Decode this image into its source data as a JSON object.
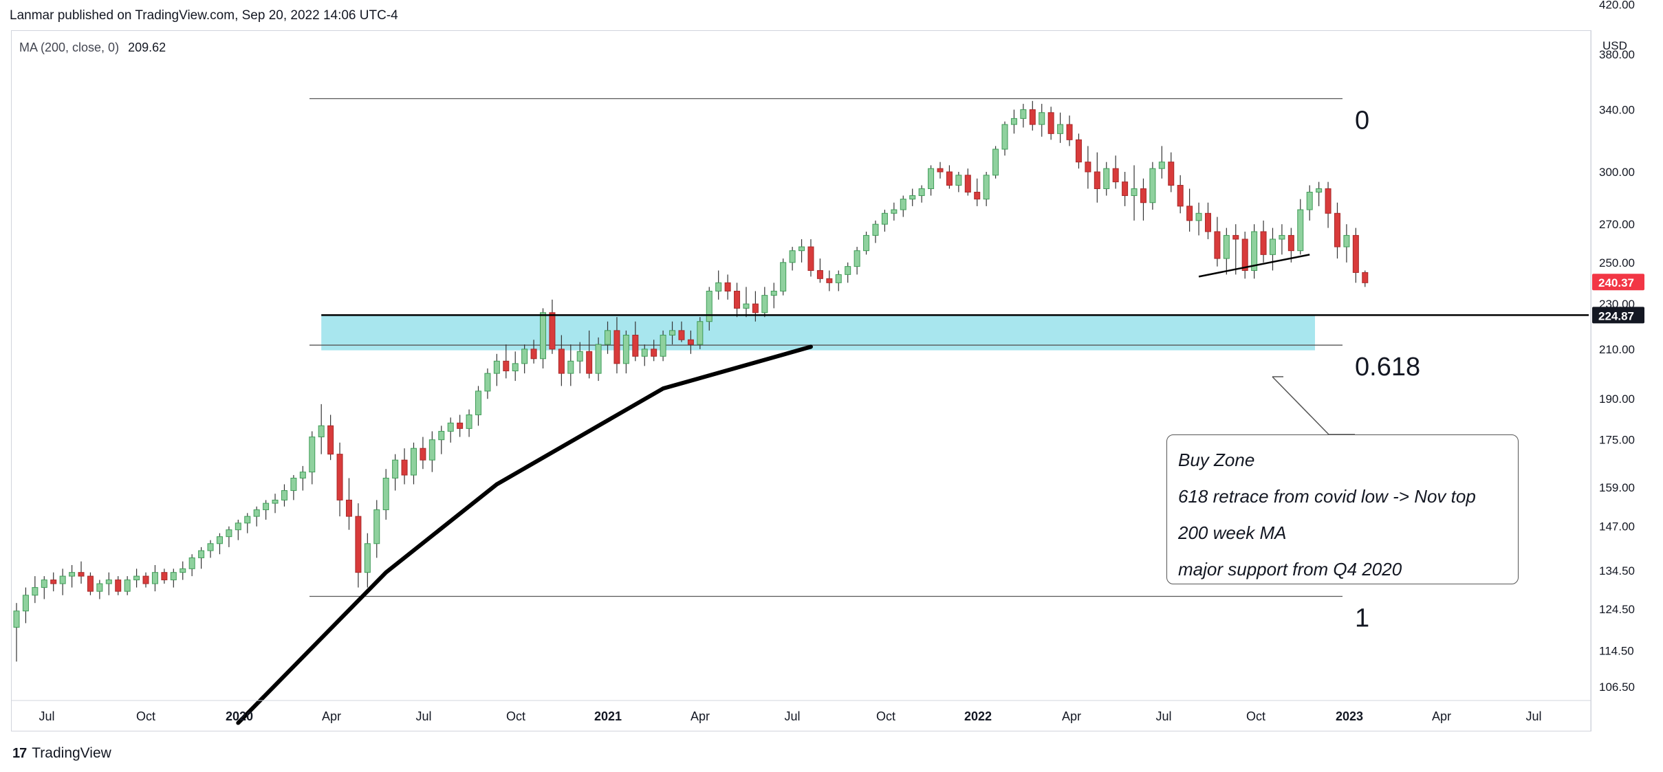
{
  "header": {
    "published": "Lanmar published on TradingView.com, Sep 20, 2022 14:06 UTC-4"
  },
  "legend": {
    "label": "MA (200, close, 0)",
    "value": "209.62"
  },
  "footer": {
    "brand": "TradingView",
    "logo_glyph": "17"
  },
  "price_axis": {
    "currency": "USD",
    "ticks": [
      "420.00",
      "380.00",
      "340.00",
      "300.00",
      "270.00",
      "250.00",
      "230.00",
      "210.00",
      "190.00",
      "175.00",
      "159.00",
      "147.00",
      "134.50",
      "124.50",
      "114.50",
      "106.50"
    ],
    "last_price": "240.37",
    "last_price_color": "#f23645",
    "line_price": "224.87",
    "line_price_color": "#131722"
  },
  "time_axis": {
    "labels": [
      "Jul",
      "Oct",
      "2020",
      "Apr",
      "Jul",
      "Oct",
      "2021",
      "Apr",
      "Jul",
      "Oct",
      "2022",
      "Apr",
      "Jul",
      "Oct",
      "2023",
      "Apr",
      "Jul"
    ],
    "bold": [
      false,
      false,
      true,
      false,
      false,
      false,
      true,
      false,
      false,
      false,
      true,
      false,
      false,
      false,
      true,
      false,
      false
    ]
  },
  "fib": {
    "level_0": "0",
    "level_618": "0.618",
    "level_1": "1"
  },
  "callout": {
    "lines": [
      "Buy Zone",
      "618 retrace from covid low -> Nov top",
      "200 week MA",
      "major support from Q4 2020"
    ]
  },
  "colors": {
    "up": "#3f9c57",
    "up_fill": "#8fd19e",
    "down": "#d83b3b",
    "zone": "#a8e6ee",
    "ma": "#000000"
  },
  "chart_data": {
    "type": "candlestick",
    "scale": "log",
    "ylim": [
      106.5,
      420
    ],
    "candles": [
      [
        120,
        126,
        112,
        124
      ],
      [
        124,
        130,
        121,
        128
      ],
      [
        128,
        133,
        126,
        130
      ],
      [
        130,
        133,
        127,
        132
      ],
      [
        132,
        134,
        129,
        131
      ],
      [
        131,
        135,
        128,
        133
      ],
      [
        133,
        136,
        130,
        134
      ],
      [
        134,
        137,
        131,
        133
      ],
      [
        133,
        134,
        128,
        129
      ],
      [
        129,
        132,
        127,
        131
      ],
      [
        131,
        134,
        128,
        132
      ],
      [
        132,
        133,
        128,
        129
      ],
      [
        129,
        133,
        128,
        132
      ],
      [
        132,
        135,
        130,
        133
      ],
      [
        133,
        134,
        130,
        131
      ],
      [
        131,
        136,
        129,
        134
      ],
      [
        134,
        135,
        131,
        132
      ],
      [
        132,
        135,
        130,
        134
      ],
      [
        134,
        137,
        132,
        135
      ],
      [
        135,
        139,
        133,
        138
      ],
      [
        138,
        141,
        135,
        140
      ],
      [
        140,
        143,
        138,
        142
      ],
      [
        142,
        145,
        139,
        144
      ],
      [
        144,
        147,
        141,
        146
      ],
      [
        146,
        149,
        143,
        148
      ],
      [
        148,
        151,
        145,
        150
      ],
      [
        150,
        153,
        147,
        152
      ],
      [
        152,
        155,
        149,
        154
      ],
      [
        154,
        157,
        151,
        155
      ],
      [
        155,
        160,
        153,
        158
      ],
      [
        158,
        163,
        155,
        162
      ],
      [
        162,
        166,
        158,
        164
      ],
      [
        164,
        178,
        160,
        176
      ],
      [
        176,
        188,
        170,
        180
      ],
      [
        180,
        184,
        168,
        170
      ],
      [
        170,
        174,
        150,
        155
      ],
      [
        155,
        162,
        146,
        150
      ],
      [
        150,
        154,
        130,
        134
      ],
      [
        134,
        145,
        130,
        142
      ],
      [
        142,
        155,
        138,
        152
      ],
      [
        152,
        165,
        149,
        162
      ],
      [
        162,
        170,
        158,
        168
      ],
      [
        168,
        172,
        160,
        163
      ],
      [
        163,
        174,
        160,
        172
      ],
      [
        172,
        176,
        165,
        168
      ],
      [
        168,
        178,
        164,
        175
      ],
      [
        175,
        180,
        170,
        178
      ],
      [
        178,
        183,
        174,
        181
      ],
      [
        181,
        184,
        176,
        179
      ],
      [
        179,
        186,
        176,
        184
      ],
      [
        184,
        195,
        180,
        193
      ],
      [
        193,
        202,
        190,
        200
      ],
      [
        200,
        208,
        195,
        205
      ],
      [
        205,
        212,
        198,
        201
      ],
      [
        201,
        209,
        197,
        204
      ],
      [
        204,
        212,
        200,
        210
      ],
      [
        210,
        214,
        204,
        206
      ],
      [
        206,
        228,
        202,
        226
      ],
      [
        226,
        232,
        208,
        210
      ],
      [
        210,
        216,
        195,
        200
      ],
      [
        200,
        212,
        195,
        205
      ],
      [
        205,
        213,
        200,
        209
      ],
      [
        209,
        218,
        198,
        200
      ],
      [
        200,
        215,
        197,
        212
      ],
      [
        212,
        222,
        208,
        218
      ],
      [
        218,
        224,
        200,
        204
      ],
      [
        204,
        218,
        200,
        216
      ],
      [
        216,
        222,
        205,
        207
      ],
      [
        207,
        212,
        203,
        210
      ],
      [
        210,
        214,
        205,
        207
      ],
      [
        207,
        218,
        205,
        216
      ],
      [
        216,
        222,
        212,
        218
      ],
      [
        218,
        222,
        213,
        214
      ],
      [
        214,
        218,
        208,
        212
      ],
      [
        212,
        224,
        210,
        222
      ],
      [
        222,
        238,
        218,
        236
      ],
      [
        236,
        246,
        232,
        240
      ],
      [
        240,
        244,
        232,
        236
      ],
      [
        236,
        240,
        224,
        228
      ],
      [
        228,
        238,
        224,
        230
      ],
      [
        230,
        236,
        222,
        226
      ],
      [
        226,
        238,
        224,
        234
      ],
      [
        234,
        240,
        228,
        236
      ],
      [
        236,
        252,
        234,
        250
      ],
      [
        250,
        258,
        246,
        256
      ],
      [
        256,
        262,
        250,
        258
      ],
      [
        258,
        262,
        243,
        246
      ],
      [
        246,
        252,
        240,
        242
      ],
      [
        242,
        246,
        236,
        240
      ],
      [
        240,
        246,
        236,
        244
      ],
      [
        244,
        250,
        240,
        248
      ],
      [
        248,
        258,
        244,
        256
      ],
      [
        256,
        266,
        254,
        264
      ],
      [
        264,
        272,
        260,
        270
      ],
      [
        270,
        278,
        266,
        276
      ],
      [
        276,
        282,
        272,
        278
      ],
      [
        278,
        286,
        274,
        284
      ],
      [
        284,
        290,
        280,
        286
      ],
      [
        286,
        292,
        282,
        290
      ],
      [
        290,
        304,
        286,
        302
      ],
      [
        302,
        306,
        296,
        300
      ],
      [
        300,
        304,
        290,
        292
      ],
      [
        292,
        300,
        288,
        298
      ],
      [
        298,
        302,
        286,
        288
      ],
      [
        288,
        296,
        280,
        284
      ],
      [
        284,
        300,
        280,
        298
      ],
      [
        298,
        316,
        296,
        314
      ],
      [
        314,
        332,
        310,
        330
      ],
      [
        330,
        340,
        324,
        334
      ],
      [
        334,
        344,
        328,
        340
      ],
      [
        340,
        346,
        326,
        330
      ],
      [
        330,
        344,
        322,
        338
      ],
      [
        338,
        342,
        320,
        324
      ],
      [
        324,
        338,
        318,
        330
      ],
      [
        330,
        336,
        316,
        320
      ],
      [
        320,
        324,
        302,
        306
      ],
      [
        306,
        316,
        290,
        300
      ],
      [
        300,
        312,
        282,
        290
      ],
      [
        290,
        306,
        286,
        302
      ],
      [
        302,
        310,
        290,
        294
      ],
      [
        294,
        300,
        280,
        286
      ],
      [
        286,
        304,
        272,
        290
      ],
      [
        290,
        296,
        272,
        282
      ],
      [
        282,
        306,
        278,
        302
      ],
      [
        302,
        316,
        296,
        306
      ],
      [
        306,
        312,
        288,
        292
      ],
      [
        292,
        298,
        276,
        280
      ],
      [
        280,
        290,
        266,
        272
      ],
      [
        272,
        282,
        264,
        276
      ],
      [
        276,
        282,
        262,
        266
      ],
      [
        266,
        274,
        248,
        252
      ],
      [
        252,
        268,
        244,
        264
      ],
      [
        264,
        270,
        244,
        262
      ],
      [
        262,
        266,
        242,
        246
      ],
      [
        246,
        270,
        242,
        266
      ],
      [
        266,
        272,
        250,
        254
      ],
      [
        254,
        268,
        246,
        262
      ],
      [
        262,
        270,
        254,
        264
      ],
      [
        264,
        268,
        250,
        256
      ],
      [
        256,
        284,
        254,
        278
      ],
      [
        278,
        292,
        272,
        288
      ],
      [
        288,
        294,
        280,
        290
      ],
      [
        290,
        294,
        268,
        276
      ],
      [
        276,
        282,
        252,
        258
      ],
      [
        258,
        270,
        250,
        264
      ],
      [
        264,
        268,
        240,
        245
      ],
      [
        245,
        246,
        238,
        240
      ]
    ],
    "ma_200": [
      [
        24,
        99
      ],
      [
        40,
        134
      ],
      [
        52,
        160
      ],
      [
        70,
        194
      ],
      [
        86,
        211
      ]
    ],
    "buy_zone": [
      209.5,
      225
    ],
    "fib_levels": {
      "0": 347.6,
      "0.618": 211.7,
      "1": 127.7
    },
    "trendline": [
      [
        128,
        243
      ],
      [
        140,
        254
      ]
    ],
    "horizontal_line": 224.87
  }
}
